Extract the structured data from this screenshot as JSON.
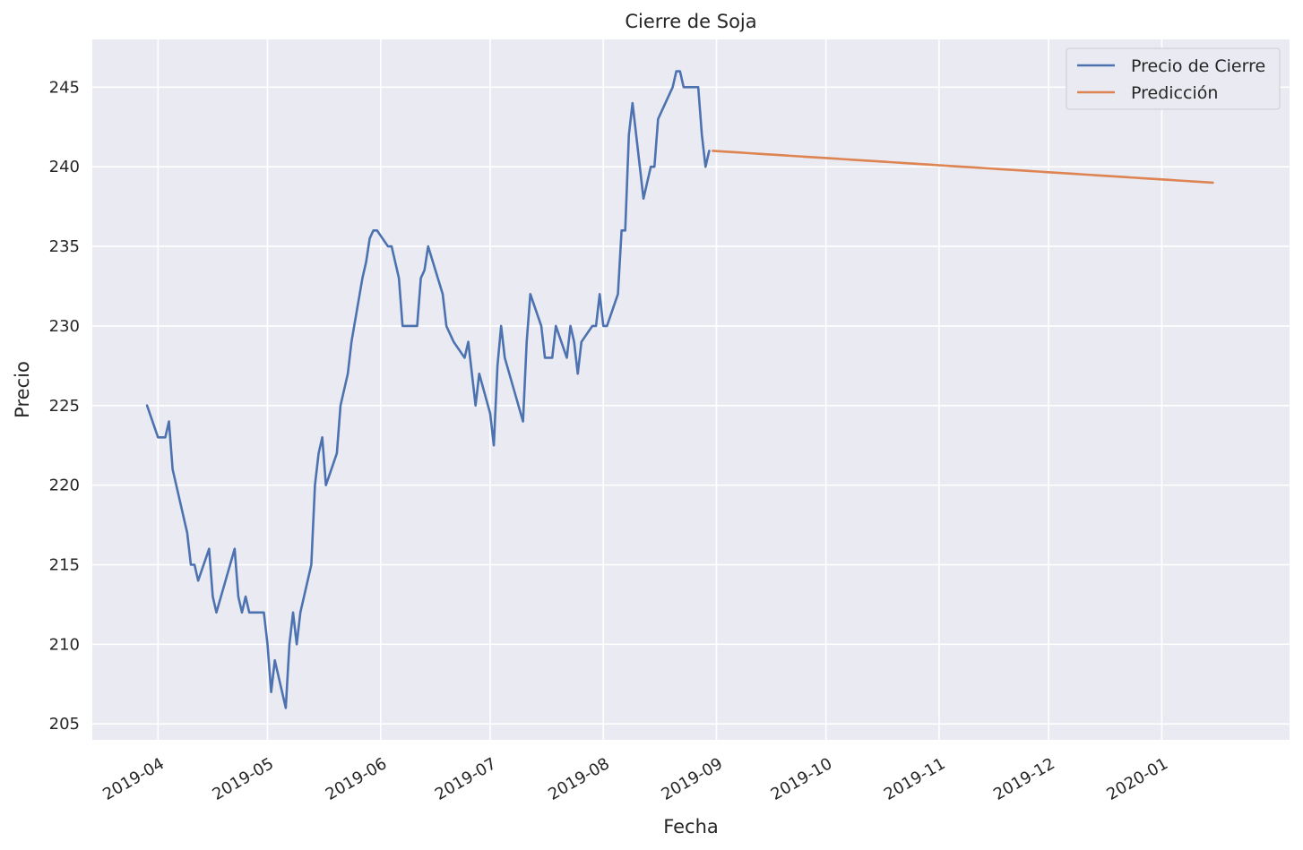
{
  "chart_data": {
    "type": "line",
    "title": "Cierre de Soja",
    "xlabel": "Fecha",
    "ylabel": "Precio",
    "x_type": "date",
    "xlim": [
      "2019-03-14",
      "2020-02-05"
    ],
    "ylim": [
      204,
      248
    ],
    "x_ticks": [
      "2019-04-01",
      "2019-05-01",
      "2019-06-01",
      "2019-07-01",
      "2019-08-01",
      "2019-09-01",
      "2019-10-01",
      "2019-11-01",
      "2019-12-01",
      "2020-01-01"
    ],
    "x_tick_labels": [
      "2019-04",
      "2019-05",
      "2019-06",
      "2019-07",
      "2019-08",
      "2019-09",
      "2019-10",
      "2019-11",
      "2019-12",
      "2020-01"
    ],
    "y_ticks": [
      205,
      210,
      215,
      220,
      225,
      230,
      235,
      240,
      245
    ],
    "y_tick_labels": [
      "205",
      "210",
      "215",
      "220",
      "225",
      "230",
      "235",
      "240",
      "245"
    ],
    "grid": true,
    "background": "#eaeaf2",
    "legend_position": "top-right",
    "series": [
      {
        "name": "Precio de Cierre",
        "color": "#4c72b0",
        "points": [
          [
            "2019-03-29",
            225
          ],
          [
            "2019-04-01",
            223
          ],
          [
            "2019-04-03",
            223
          ],
          [
            "2019-04-04",
            224
          ],
          [
            "2019-04-05",
            221
          ],
          [
            "2019-04-09",
            217
          ],
          [
            "2019-04-10",
            215
          ],
          [
            "2019-04-11",
            215
          ],
          [
            "2019-04-12",
            214
          ],
          [
            "2019-04-15",
            216
          ],
          [
            "2019-04-16",
            213
          ],
          [
            "2019-04-17",
            212
          ],
          [
            "2019-04-22",
            216
          ],
          [
            "2019-04-23",
            213
          ],
          [
            "2019-04-24",
            212
          ],
          [
            "2019-04-25",
            213
          ],
          [
            "2019-04-26",
            212
          ],
          [
            "2019-04-30",
            212
          ],
          [
            "2019-05-01",
            210
          ],
          [
            "2019-05-02",
            207
          ],
          [
            "2019-05-03",
            209
          ],
          [
            "2019-05-06",
            206
          ],
          [
            "2019-05-07",
            210
          ],
          [
            "2019-05-08",
            212
          ],
          [
            "2019-05-09",
            210
          ],
          [
            "2019-05-10",
            212
          ],
          [
            "2019-05-13",
            215
          ],
          [
            "2019-05-14",
            220
          ],
          [
            "2019-05-15",
            222
          ],
          [
            "2019-05-16",
            223
          ],
          [
            "2019-05-17",
            220
          ],
          [
            "2019-05-20",
            222
          ],
          [
            "2019-05-21",
            225
          ],
          [
            "2019-05-23",
            227
          ],
          [
            "2019-05-24",
            229
          ],
          [
            "2019-05-27",
            233
          ],
          [
            "2019-05-28",
            234
          ],
          [
            "2019-05-29",
            235.5
          ],
          [
            "2019-05-30",
            236
          ],
          [
            "2019-05-31",
            236
          ],
          [
            "2019-06-03",
            235
          ],
          [
            "2019-06-04",
            235
          ],
          [
            "2019-06-06",
            233
          ],
          [
            "2019-06-07",
            230
          ],
          [
            "2019-06-11",
            230
          ],
          [
            "2019-06-12",
            233
          ],
          [
            "2019-06-13",
            233.5
          ],
          [
            "2019-06-14",
            235
          ],
          [
            "2019-06-18",
            232
          ],
          [
            "2019-06-19",
            230
          ],
          [
            "2019-06-21",
            229
          ],
          [
            "2019-06-24",
            228
          ],
          [
            "2019-06-25",
            229
          ],
          [
            "2019-06-27",
            225
          ],
          [
            "2019-06-28",
            227
          ],
          [
            "2019-07-01",
            224.5
          ],
          [
            "2019-07-02",
            222.5
          ],
          [
            "2019-07-03",
            227.5
          ],
          [
            "2019-07-04",
            230
          ],
          [
            "2019-07-05",
            228
          ],
          [
            "2019-07-10",
            224
          ],
          [
            "2019-07-11",
            229
          ],
          [
            "2019-07-12",
            232
          ],
          [
            "2019-07-15",
            230
          ],
          [
            "2019-07-16",
            228
          ],
          [
            "2019-07-18",
            228
          ],
          [
            "2019-07-19",
            230
          ],
          [
            "2019-07-22",
            228
          ],
          [
            "2019-07-23",
            230
          ],
          [
            "2019-07-24",
            229
          ],
          [
            "2019-07-25",
            227
          ],
          [
            "2019-07-26",
            229
          ],
          [
            "2019-07-29",
            230
          ],
          [
            "2019-07-30",
            230
          ],
          [
            "2019-07-31",
            232
          ],
          [
            "2019-08-01",
            230
          ],
          [
            "2019-08-02",
            230
          ],
          [
            "2019-08-05",
            232
          ],
          [
            "2019-08-06",
            236
          ],
          [
            "2019-08-07",
            236
          ],
          [
            "2019-08-08",
            242
          ],
          [
            "2019-08-09",
            244
          ],
          [
            "2019-08-12",
            238
          ],
          [
            "2019-08-14",
            240
          ],
          [
            "2019-08-15",
            240
          ],
          [
            "2019-08-16",
            243
          ],
          [
            "2019-08-20",
            245
          ],
          [
            "2019-08-21",
            246
          ],
          [
            "2019-08-22",
            246
          ],
          [
            "2019-08-23",
            245
          ],
          [
            "2019-08-26",
            245
          ],
          [
            "2019-08-27",
            245
          ],
          [
            "2019-08-28",
            242
          ],
          [
            "2019-08-29",
            240
          ],
          [
            "2019-08-30",
            241
          ]
        ]
      },
      {
        "name": "Predicción",
        "color": "#dd8452",
        "points": [
          [
            "2019-08-31",
            241
          ],
          [
            "2020-01-15",
            239
          ]
        ]
      }
    ]
  }
}
